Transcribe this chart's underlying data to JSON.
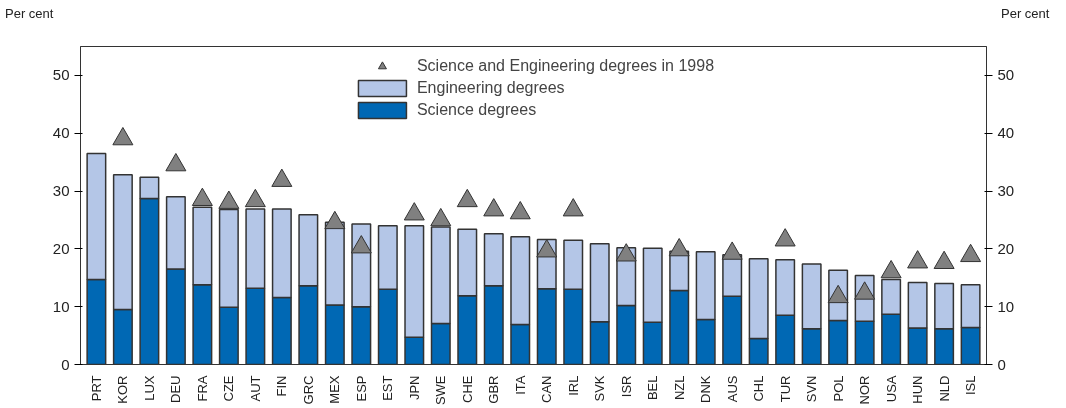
{
  "chart_data": {
    "type": "bar",
    "stacked": true,
    "ylabel": "Per cent",
    "y2label": "Per cent",
    "categories": [
      "PRT",
      "KOR",
      "LUX",
      "DEU",
      "FRA",
      "CZE",
      "AUT",
      "FIN",
      "GRC",
      "MEX",
      "ESP",
      "EST",
      "JPN",
      "SWE",
      "CHE",
      "GBR",
      "ITA",
      "CAN",
      "IRL",
      "SVK",
      "ISR",
      "BEL",
      "NZL",
      "DNK",
      "AUS",
      "CHL",
      "TUR",
      "SVN",
      "POL",
      "NOR",
      "USA",
      "HUN",
      "NLD",
      "ISL"
    ],
    "series": [
      {
        "name": "Science degrees",
        "color": "#0068b4",
        "values": [
          14.7,
          9.5,
          28.7,
          16.5,
          13.8,
          9.9,
          13.2,
          11.6,
          13.6,
          10.3,
          10.0,
          13.0,
          4.7,
          7.1,
          11.9,
          13.6,
          6.9,
          13.1,
          13.0,
          7.4,
          10.2,
          7.3,
          12.8,
          7.8,
          11.8,
          4.5,
          8.5,
          6.2,
          7.6,
          7.5,
          8.7,
          6.3,
          6.2,
          6.4
        ]
      },
      {
        "name": "Engineering degrees",
        "color": "#b4c6e7",
        "values": [
          21.8,
          23.3,
          3.7,
          12.5,
          13.4,
          16.9,
          13.7,
          15.3,
          12.3,
          14.3,
          14.3,
          11.0,
          19.3,
          16.7,
          11.5,
          9.0,
          15.2,
          8.5,
          8.5,
          13.5,
          10.0,
          12.8,
          6.8,
          11.7,
          7.2,
          13.8,
          9.6,
          11.2,
          8.7,
          7.9,
          6.0,
          7.9,
          7.8,
          7.4
        ]
      },
      {
        "name": "Science and Engineering degrees in 1998",
        "type": "scatter",
        "marker": "triangle",
        "color": "#808080",
        "values": [
          null,
          39.0,
          null,
          34.5,
          28.5,
          28.0,
          28.3,
          31.8,
          null,
          24.5,
          20.3,
          null,
          26.0,
          25.0,
          28.3,
          26.7,
          26.2,
          19.6,
          26.7,
          null,
          18.9,
          null,
          19.8,
          null,
          19.2,
          null,
          21.5,
          null,
          11.7,
          12.3,
          16.0,
          17.7,
          17.6,
          18.8
        ]
      }
    ],
    "ylim": [
      0,
      55
    ],
    "yticks": [
      0,
      10,
      20,
      30,
      40,
      50
    ],
    "y2lim": [
      0,
      55
    ],
    "y2ticks": [
      0,
      10,
      20,
      30,
      40,
      50
    ],
    "grid": false,
    "legend": "top"
  }
}
